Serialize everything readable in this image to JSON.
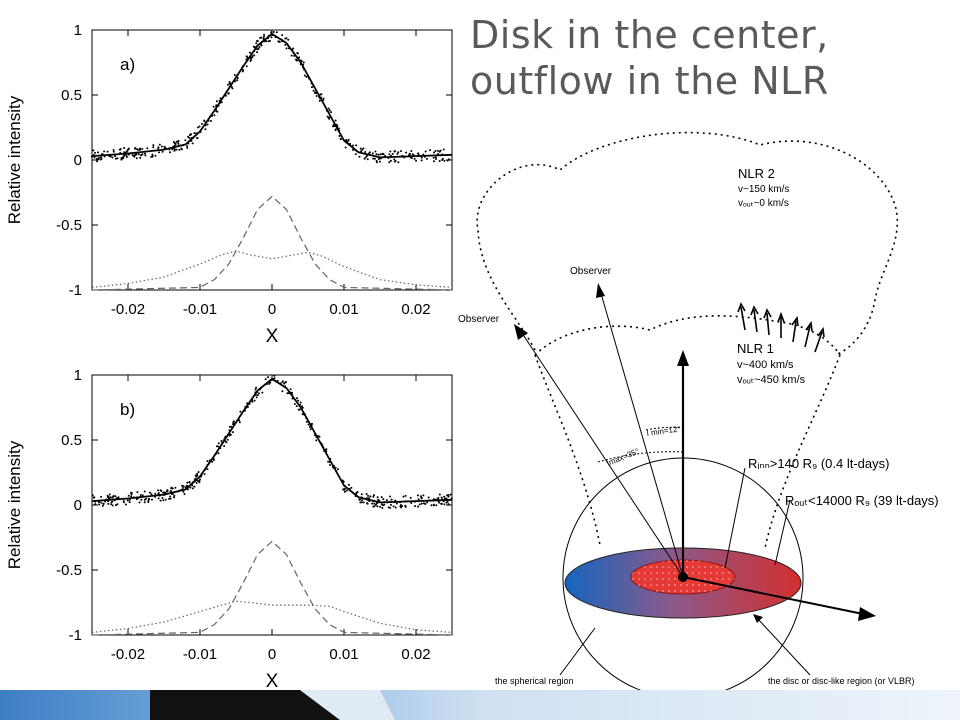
{
  "slide": {
    "title": "Disk in the center, outflow in the NLR"
  },
  "chart_data": [
    {
      "type": "line",
      "panel_label": "a)",
      "xlabel": "X",
      "ylabel": "Relative intensity",
      "xlim": [
        -0.025,
        0.025
      ],
      "ylim": [
        -1,
        1
      ],
      "xticks": [
        "-0.02",
        "-0.01",
        "0",
        "0.01",
        "0.02"
      ],
      "yticks": [
        "1",
        "0.5",
        "0",
        "-0.5",
        "-1"
      ],
      "series": [
        {
          "style": "solid",
          "x": [
            -0.025,
            -0.02,
            -0.015,
            -0.012,
            -0.01,
            -0.008,
            -0.006,
            -0.004,
            -0.002,
            0,
            0.002,
            0.004,
            0.006,
            0.008,
            0.01,
            0.012,
            0.015,
            0.02,
            0.025
          ],
          "y": [
            0.03,
            0.05,
            0.08,
            0.12,
            0.22,
            0.38,
            0.55,
            0.72,
            0.88,
            0.97,
            0.9,
            0.75,
            0.55,
            0.35,
            0.15,
            0.06,
            0.02,
            0.03,
            0.04
          ]
        },
        {
          "style": "dashed",
          "x": [
            -0.025,
            -0.01,
            -0.008,
            -0.006,
            -0.004,
            -0.002,
            0,
            0.002,
            0.004,
            0.006,
            0.008,
            0.01,
            0.025
          ],
          "y": [
            -1,
            -0.98,
            -0.92,
            -0.8,
            -0.6,
            -0.38,
            -0.28,
            -0.38,
            -0.6,
            -0.8,
            -0.92,
            -0.98,
            -1
          ]
        },
        {
          "style": "dotted",
          "x": [
            -0.025,
            -0.02,
            -0.015,
            -0.01,
            -0.007,
            -0.005,
            -0.003,
            0,
            0.003,
            0.005,
            0.007,
            0.01,
            0.015,
            0.02,
            0.025
          ],
          "y": [
            -0.98,
            -0.95,
            -0.9,
            -0.8,
            -0.73,
            -0.7,
            -0.73,
            -0.76,
            -0.73,
            -0.71,
            -0.74,
            -0.82,
            -0.92,
            -0.96,
            -0.98
          ]
        }
      ]
    },
    {
      "type": "line",
      "panel_label": "b)",
      "xlabel": "X",
      "ylabel": "Relative intensity",
      "xlim": [
        -0.025,
        0.025
      ],
      "ylim": [
        -1,
        1
      ],
      "xticks": [
        "-0.02",
        "-0.01",
        "0",
        "0.01",
        "0.02"
      ],
      "yticks": [
        "1",
        "0.5",
        "0",
        "-0.5",
        "-1"
      ],
      "series": [
        {
          "style": "solid",
          "x": [
            -0.025,
            -0.02,
            -0.015,
            -0.012,
            -0.01,
            -0.008,
            -0.006,
            -0.004,
            -0.002,
            0,
            0.002,
            0.004,
            0.006,
            0.008,
            0.01,
            0.012,
            0.015,
            0.02,
            0.025
          ],
          "y": [
            0.03,
            0.05,
            0.08,
            0.12,
            0.22,
            0.38,
            0.55,
            0.72,
            0.88,
            0.97,
            0.9,
            0.75,
            0.55,
            0.35,
            0.15,
            0.06,
            0.02,
            0.03,
            0.04
          ]
        },
        {
          "style": "dashed",
          "x": [
            -0.025,
            -0.01,
            -0.008,
            -0.006,
            -0.004,
            -0.002,
            0,
            0.002,
            0.004,
            0.006,
            0.008,
            0.01,
            0.025
          ],
          "y": [
            -1,
            -0.98,
            -0.92,
            -0.8,
            -0.6,
            -0.38,
            -0.28,
            -0.38,
            -0.6,
            -0.8,
            -0.92,
            -0.98,
            -1
          ]
        },
        {
          "style": "dotted",
          "x": [
            -0.025,
            -0.02,
            -0.015,
            -0.01,
            -0.007,
            -0.005,
            -0.003,
            0,
            0.003,
            0.005,
            0.008,
            0.01,
            0.015,
            0.02,
            0.025
          ],
          "y": [
            -0.98,
            -0.95,
            -0.9,
            -0.82,
            -0.77,
            -0.74,
            -0.75,
            -0.77,
            -0.77,
            -0.77,
            -0.78,
            -0.82,
            -0.91,
            -0.96,
            -0.98
          ]
        }
      ]
    }
  ],
  "diagram": {
    "nlr2_label": "NLR 2",
    "nlr2_v": "v~150 km/s",
    "nlr2_vout": "vₒᵤₜ~0 km/s",
    "nlr1_label": "NLR 1",
    "nlr1_v": "v~400 km/s",
    "nlr1_vout": "vₒᵤₜ~450 km/s",
    "observer_1": "Observer",
    "observer_2": "Observer",
    "imin": "I min=12°",
    "imax": "Imax=35°",
    "rinn": "Rᵢₙₙ>140 R₉ (0.4 lt-days)",
    "rout": "Rₒᵤₜ<14000 R₉ (39 lt-days)",
    "spherical_label": "the spherical region",
    "disc_label": "the disc or disc-like region (or VLBR)"
  },
  "colors": {
    "title": "#5a5a5a",
    "disc_blue": "#1565c0",
    "disc_red": "#d32f2f",
    "inner_disc": "#e53935",
    "footer_dark": "#111111",
    "footer_blue": "#3d7ec4",
    "footer_light": "#cfe0f2"
  }
}
